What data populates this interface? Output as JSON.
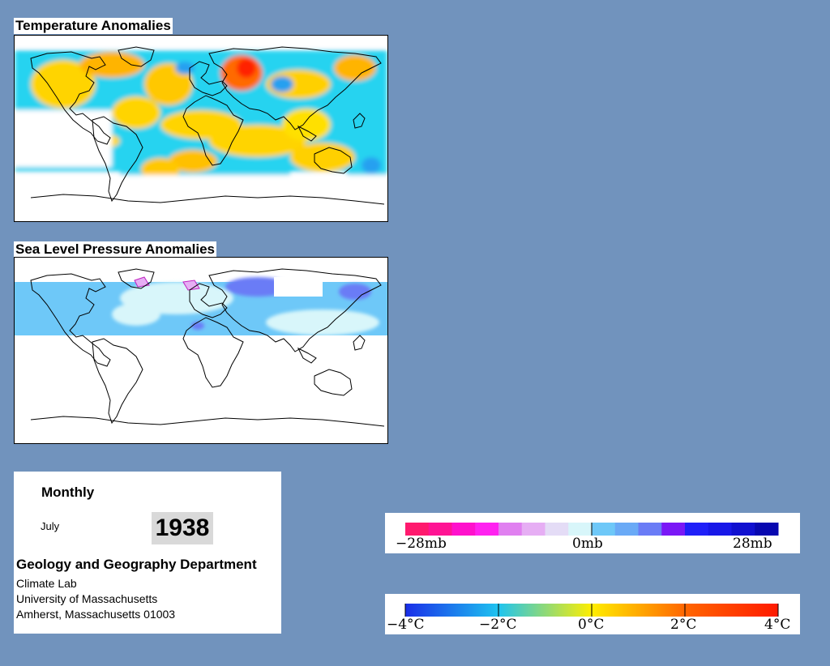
{
  "panels": {
    "temperature_title": "Temperature Anomalies",
    "pressure_title": "Sea Level Pressure Anomalies"
  },
  "info": {
    "period": "Monthly",
    "month": "July",
    "year": "1938",
    "department": "Geology and Geography Department",
    "lab": "Climate Lab",
    "university": "University of Massachusetts",
    "address": "Amherst, Massachusetts 01003"
  },
  "pressure_legend": {
    "labels": [
      "−28mb",
      "0mb",
      "28mb"
    ],
    "colors": [
      "#ff1a6e",
      "#ff1494",
      "#ff11cc",
      "#ff22f0",
      "#e080f0",
      "#e6aef4",
      "#e4dcf6",
      "#d8f6fa",
      "#6ec8f8",
      "#6aaaf6",
      "#6a7cf6",
      "#7a18f6",
      "#2020f8",
      "#1818e8",
      "#1010d0",
      "#0808b0"
    ]
  },
  "temperature_legend": {
    "labels": [
      "−4°C",
      "−2°C",
      "0°C",
      "2°C",
      "4°C"
    ],
    "colors": [
      "#1a2ee8",
      "#1ec4f0",
      "#ffee00",
      "#ff6600",
      "#ff1a00"
    ]
  },
  "colors": {
    "background": "#7193bd",
    "panel": "#ffffff",
    "land_outline": "#000000"
  }
}
